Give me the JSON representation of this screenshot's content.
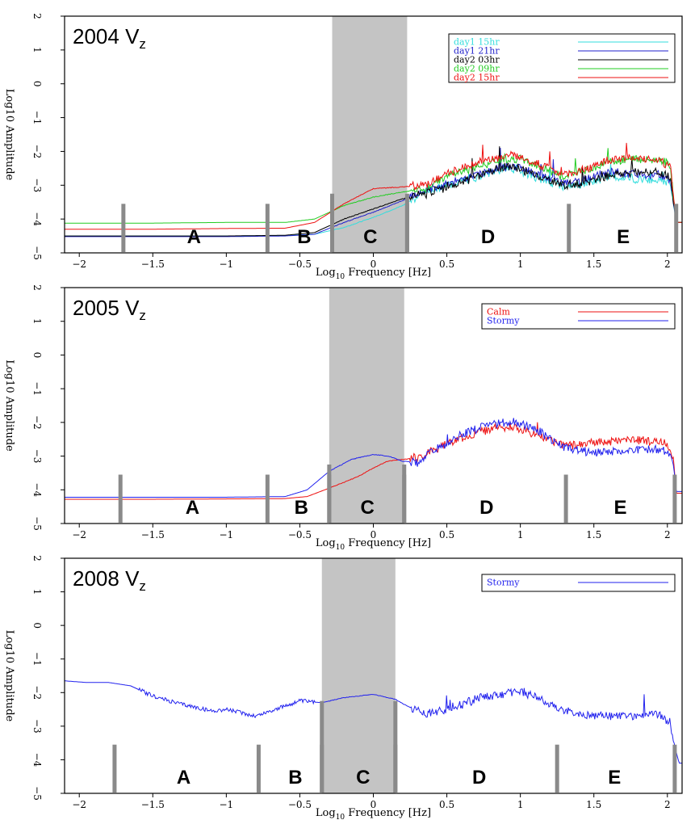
{
  "chart_data": [
    {
      "type": "line",
      "title": "2004 V",
      "title_subscript": "z",
      "xlabel": "Log",
      "xlabel_subscript": "10",
      "xlabel_rest": " Frequency [Hz]",
      "ylabel": "Log10 Amplitude",
      "xlim": [
        -2.1,
        2.1
      ],
      "ylim": [
        -5,
        2
      ],
      "xticks": [
        -2,
        -1.5,
        -1,
        -0.5,
        0,
        0.5,
        1,
        1.5,
        2
      ],
      "xtick_labels": [
        "−2",
        "−1.5",
        "−1",
        "−0.5",
        "0",
        "0.5",
        "1",
        "1.5",
        "2"
      ],
      "yticks": [
        -5,
        -4,
        -3,
        -2,
        -1,
        0,
        1,
        2
      ],
      "ytick_labels": [
        "−5",
        "−4",
        "−3",
        "−2",
        "−1",
        "0",
        "1",
        "2"
      ],
      "legend_position": "top-right",
      "band_boundaries": [
        -1.7,
        -0.72,
        -0.28,
        0.23,
        1.33,
        2.06
      ],
      "shaded_band": [
        -0.28,
        0.23
      ],
      "band_labels": [
        {
          "label": "A",
          "x": -1.22
        },
        {
          "label": "B",
          "x": -0.47
        },
        {
          "label": "C",
          "x": -0.02
        },
        {
          "label": "D",
          "x": 0.78
        },
        {
          "label": "E",
          "x": 1.7
        }
      ],
      "series": [
        {
          "name": "day1 15hr",
          "color": "#33dddd",
          "x": [
            -2.1,
            -1.5,
            -1.0,
            -0.6,
            -0.4,
            -0.2,
            0.0,
            0.2,
            0.35,
            0.5,
            0.7,
            0.9,
            1.0,
            1.1,
            1.3,
            1.45,
            1.6,
            1.8,
            1.95,
            2.02,
            2.06,
            2.1
          ],
          "y": [
            -4.5,
            -4.5,
            -4.5,
            -4.49,
            -4.45,
            -4.25,
            -3.95,
            -3.6,
            -3.2,
            -3.0,
            -2.75,
            -2.5,
            -2.55,
            -2.75,
            -3.05,
            -2.95,
            -2.75,
            -2.8,
            -2.85,
            -2.95,
            -4.1,
            -4.1
          ]
        },
        {
          "name": "day1 21hr",
          "color": "#2222cc",
          "x": [
            -2.1,
            -1.5,
            -1.0,
            -0.6,
            -0.4,
            -0.2,
            0.0,
            0.2,
            0.35,
            0.5,
            0.7,
            0.9,
            1.0,
            1.1,
            1.3,
            1.45,
            1.6,
            1.8,
            1.95,
            2.02,
            2.06,
            2.1
          ],
          "y": [
            -4.52,
            -4.52,
            -4.52,
            -4.5,
            -4.45,
            -4.1,
            -3.8,
            -3.45,
            -3.15,
            -2.95,
            -2.7,
            -2.45,
            -2.45,
            -2.65,
            -2.95,
            -2.85,
            -2.6,
            -2.65,
            -2.7,
            -2.85,
            -4.1,
            -4.1
          ]
        },
        {
          "name": "day2 03hr",
          "color": "#000000",
          "x": [
            -2.1,
            -1.5,
            -1.0,
            -0.6,
            -0.4,
            -0.2,
            0.0,
            0.2,
            0.35,
            0.5,
            0.7,
            0.9,
            1.0,
            1.1,
            1.3,
            1.45,
            1.6,
            1.8,
            1.95,
            2.02,
            2.06,
            2.1
          ],
          "y": [
            -4.5,
            -4.5,
            -4.5,
            -4.48,
            -4.4,
            -4.0,
            -3.7,
            -3.4,
            -3.25,
            -3.05,
            -2.75,
            -2.45,
            -2.5,
            -2.7,
            -3.0,
            -2.95,
            -2.7,
            -2.6,
            -2.65,
            -2.75,
            -4.1,
            -4.1
          ]
        },
        {
          "name": "day2 09hr",
          "color": "#22cc22",
          "x": [
            -2.1,
            -1.5,
            -1.0,
            -0.6,
            -0.4,
            -0.2,
            0.0,
            0.2,
            0.35,
            0.5,
            0.7,
            0.9,
            1.0,
            1.1,
            1.3,
            1.45,
            1.6,
            1.8,
            1.95,
            2.02,
            2.06,
            2.1
          ],
          "y": [
            -4.12,
            -4.12,
            -4.1,
            -4.1,
            -4.0,
            -3.6,
            -3.35,
            -3.2,
            -3.1,
            -2.75,
            -2.45,
            -2.2,
            -2.2,
            -2.4,
            -2.75,
            -2.55,
            -2.3,
            -2.2,
            -2.25,
            -2.4,
            -4.1,
            -4.1
          ]
        },
        {
          "name": "day2 15hr",
          "color": "#ee1111",
          "x": [
            -2.1,
            -1.5,
            -1.0,
            -0.6,
            -0.4,
            -0.2,
            0.0,
            0.2,
            0.35,
            0.5,
            0.7,
            0.9,
            1.0,
            1.1,
            1.3,
            1.45,
            1.6,
            1.8,
            1.95,
            2.02,
            2.06,
            2.1
          ],
          "y": [
            -4.3,
            -4.3,
            -4.28,
            -4.27,
            -4.1,
            -3.55,
            -3.1,
            -3.05,
            -3.0,
            -2.65,
            -2.35,
            -2.15,
            -2.15,
            -2.35,
            -2.7,
            -2.5,
            -2.25,
            -2.2,
            -2.25,
            -2.45,
            -4.1,
            -4.1
          ]
        }
      ]
    },
    {
      "type": "line",
      "title": "2005 V",
      "title_subscript": "z",
      "xlabel": "Log",
      "xlabel_subscript": "10",
      "xlabel_rest": " Frequency [Hz]",
      "ylabel": "Log10 Amplitude",
      "xlim": [
        -2.1,
        2.1
      ],
      "ylim": [
        -5,
        2
      ],
      "xticks": [
        -2,
        -1.5,
        -1,
        -0.5,
        0,
        0.5,
        1,
        1.5,
        2
      ],
      "xtick_labels": [
        "−2",
        "−1.5",
        "−1",
        "−0.5",
        "0",
        "0.5",
        "1",
        "1.5",
        "2"
      ],
      "yticks": [
        -5,
        -4,
        -3,
        -2,
        -1,
        0,
        1,
        2
      ],
      "ytick_labels": [
        "−5",
        "−4",
        "−3",
        "−2",
        "−1",
        "0",
        "1",
        "2"
      ],
      "legend_position": "top-right",
      "band_boundaries": [
        -1.72,
        -0.72,
        -0.3,
        0.21,
        1.31,
        2.05
      ],
      "shaded_band": [
        -0.3,
        0.21
      ],
      "band_labels": [
        {
          "label": "A",
          "x": -1.23
        },
        {
          "label": "B",
          "x": -0.49
        },
        {
          "label": "C",
          "x": -0.04
        },
        {
          "label": "D",
          "x": 0.77
        },
        {
          "label": "E",
          "x": 1.68
        }
      ],
      "series": [
        {
          "name": "Calm",
          "color": "#ee1111",
          "x": [
            -2.1,
            -1.5,
            -1.0,
            -0.6,
            -0.45,
            -0.3,
            -0.1,
            0.0,
            0.1,
            0.2,
            0.3,
            0.4,
            0.6,
            0.8,
            0.95,
            1.1,
            1.3,
            1.5,
            1.7,
            1.9,
            2.0,
            2.04,
            2.06,
            2.1
          ],
          "y": [
            -4.28,
            -4.28,
            -4.27,
            -4.26,
            -4.2,
            -3.95,
            -3.6,
            -3.35,
            -3.15,
            -3.1,
            -3.05,
            -2.85,
            -2.45,
            -2.2,
            -2.15,
            -2.35,
            -2.7,
            -2.6,
            -2.5,
            -2.55,
            -2.65,
            -3.0,
            -4.1,
            -4.1
          ]
        },
        {
          "name": "Stormy",
          "color": "#2222ee",
          "x": [
            -2.1,
            -1.5,
            -1.0,
            -0.6,
            -0.45,
            -0.3,
            -0.15,
            0.0,
            0.1,
            0.2,
            0.3,
            0.4,
            0.6,
            0.8,
            0.95,
            1.1,
            1.3,
            1.5,
            1.7,
            1.9,
            2.0,
            2.04,
            2.06,
            2.1
          ],
          "y": [
            -4.22,
            -4.22,
            -4.22,
            -4.2,
            -4.0,
            -3.45,
            -3.1,
            -2.95,
            -3.0,
            -3.15,
            -3.2,
            -2.85,
            -2.35,
            -2.05,
            -2.0,
            -2.2,
            -2.75,
            -2.9,
            -2.85,
            -2.8,
            -2.85,
            -3.2,
            -4.05,
            -4.05
          ]
        }
      ]
    },
    {
      "type": "line",
      "title": "2008 V",
      "title_subscript": "z",
      "xlabel": "Log",
      "xlabel_subscript": "10",
      "xlabel_rest": " Frequency [Hz]",
      "ylabel": "Log10 Amplitude",
      "xlim": [
        -2.1,
        2.1
      ],
      "ylim": [
        -5,
        2
      ],
      "xticks": [
        -2,
        -1.5,
        -1,
        -0.5,
        0,
        0.5,
        1,
        1.5,
        2
      ],
      "xtick_labels": [
        "−2",
        "−1.5",
        "−1",
        "−0.5",
        "0",
        "0.5",
        "1",
        "1.5",
        "2"
      ],
      "yticks": [
        -5,
        -4,
        -3,
        -2,
        -1,
        0,
        1,
        2
      ],
      "ytick_labels": [
        "−5",
        "−4",
        "−3",
        "−2",
        "−1",
        "0",
        "1",
        "2"
      ],
      "legend_position": "top-right",
      "band_boundaries": [
        -1.76,
        -0.78,
        -0.35,
        0.15,
        1.25,
        2.05
      ],
      "shaded_band": [
        -0.35,
        0.15
      ],
      "band_labels": [
        {
          "label": "A",
          "x": -1.29
        },
        {
          "label": "B",
          "x": -0.53
        },
        {
          "label": "C",
          "x": -0.07
        },
        {
          "label": "D",
          "x": 0.72
        },
        {
          "label": "E",
          "x": 1.64
        }
      ],
      "series": [
        {
          "name": "Stormy",
          "color": "#2222ee",
          "x": [
            -2.1,
            -1.95,
            -1.8,
            -1.65,
            -1.5,
            -1.35,
            -1.2,
            -1.1,
            -1.0,
            -0.9,
            -0.8,
            -0.7,
            -0.6,
            -0.5,
            -0.35,
            -0.2,
            0.0,
            0.15,
            0.25,
            0.35,
            0.5,
            0.7,
            0.9,
            1.0,
            1.1,
            1.25,
            1.4,
            1.6,
            1.8,
            1.95,
            2.02,
            2.05,
            2.08,
            2.1
          ],
          "y": [
            -1.65,
            -1.7,
            -1.7,
            -1.8,
            -2.1,
            -2.3,
            -2.45,
            -2.55,
            -2.5,
            -2.6,
            -2.7,
            -2.55,
            -2.4,
            -2.25,
            -2.3,
            -2.15,
            -2.05,
            -2.2,
            -2.45,
            -2.65,
            -2.5,
            -2.2,
            -2.0,
            -1.95,
            -2.1,
            -2.5,
            -2.65,
            -2.7,
            -2.7,
            -2.65,
            -2.9,
            -3.6,
            -4.1,
            -4.1
          ]
        }
      ]
    }
  ]
}
